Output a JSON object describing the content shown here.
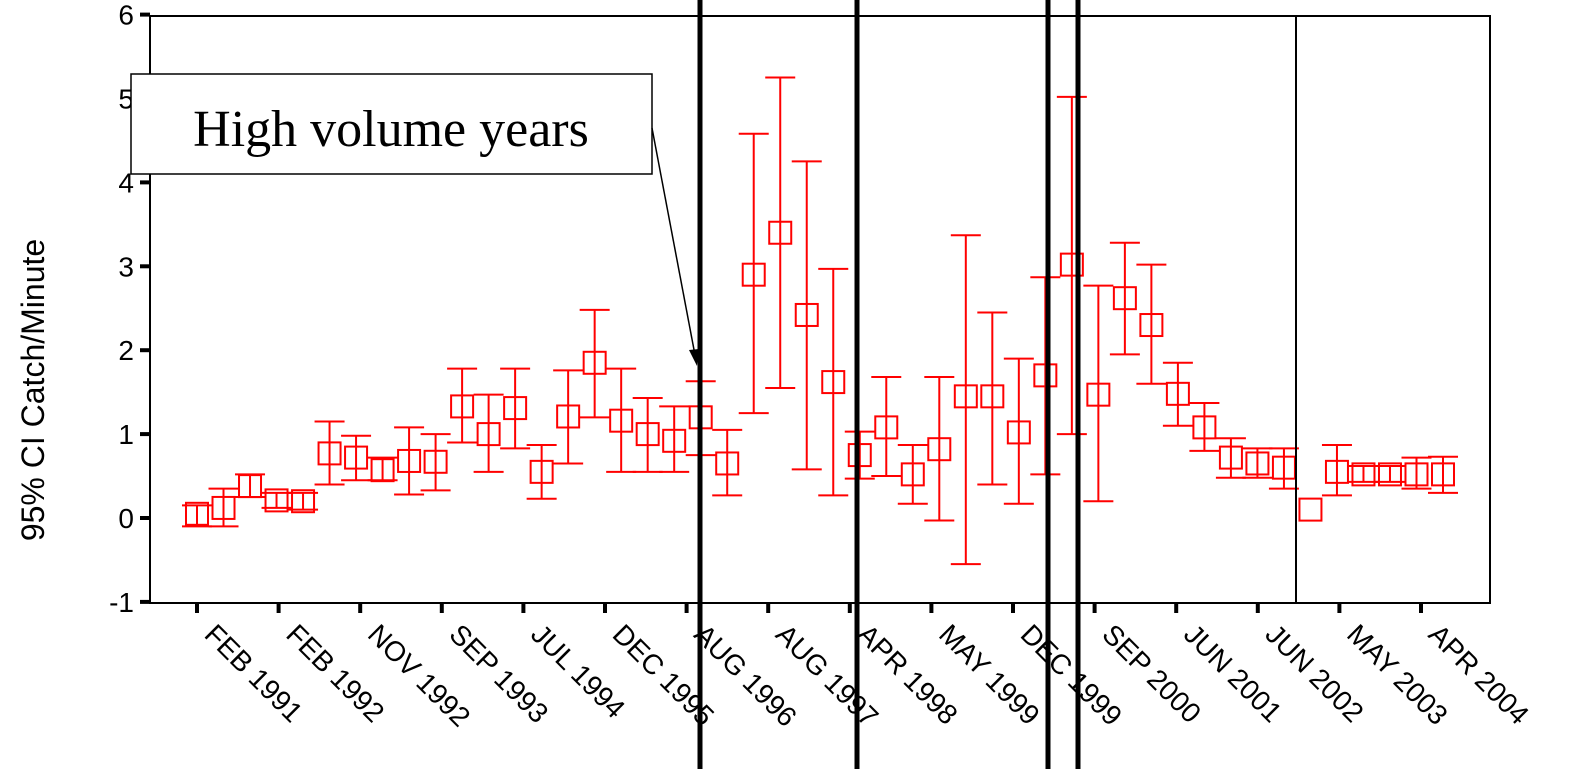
{
  "chart_data": {
    "type": "scatter",
    "title": "",
    "xlabel": "",
    "ylabel": "95% CI Catch/Minute",
    "ylim": [
      -1,
      6
    ],
    "yticks": [
      -1,
      0,
      1,
      2,
      3,
      4,
      5,
      6
    ],
    "grid": false,
    "color": "#ff0000",
    "x_tick_labels": [
      "FEB 1991",
      "FEB 1992",
      "NOV 1992",
      "SEP 1993",
      "JUL 1994",
      "DEC 1995",
      "AUG 1996",
      "AUG 1997",
      "APR 1998",
      "MAY 1999",
      "DEC 1999",
      "SEP 2000",
      "JUN 2001",
      "JUN 2002",
      "MAY 2003",
      "APR 2004"
    ],
    "annotation": {
      "text": "High volume years"
    },
    "series": [
      {
        "points": [
          {
            "mean": 0.05,
            "low": -0.1,
            "high": 0.15
          },
          {
            "mean": 0.12,
            "low": -0.1,
            "high": 0.35
          },
          {
            "mean": 0.38,
            "low": 0.25,
            "high": 0.52
          },
          {
            "mean": 0.21,
            "low": 0.12,
            "high": 0.3
          },
          {
            "mean": 0.2,
            "low": 0.1,
            "high": 0.3
          },
          {
            "mean": 0.77,
            "low": 0.4,
            "high": 1.15
          },
          {
            "mean": 0.72,
            "low": 0.45,
            "high": 0.98
          },
          {
            "mean": 0.57,
            "low": 0.45,
            "high": 0.72
          },
          {
            "mean": 0.68,
            "low": 0.28,
            "high": 1.08
          },
          {
            "mean": 0.67,
            "low": 0.33,
            "high": 1.0
          },
          {
            "mean": 1.33,
            "low": 0.9,
            "high": 1.78
          },
          {
            "mean": 1.0,
            "low": 0.55,
            "high": 1.47
          },
          {
            "mean": 1.31,
            "low": 0.83,
            "high": 1.78
          },
          {
            "mean": 0.55,
            "low": 0.23,
            "high": 0.87
          },
          {
            "mean": 1.21,
            "low": 0.65,
            "high": 1.76
          },
          {
            "mean": 1.85,
            "low": 1.2,
            "high": 2.48
          },
          {
            "mean": 1.16,
            "low": 0.55,
            "high": 1.78
          },
          {
            "mean": 1.0,
            "low": 0.55,
            "high": 1.43
          },
          {
            "mean": 0.92,
            "low": 0.55,
            "high": 1.33
          },
          {
            "mean": 1.2,
            "low": 0.75,
            "high": 1.63
          },
          {
            "mean": 0.65,
            "low": 0.27,
            "high": 1.05
          },
          {
            "mean": 2.9,
            "low": 1.25,
            "high": 4.58
          },
          {
            "mean": 3.4,
            "low": 1.55,
            "high": 5.25
          },
          {
            "mean": 2.42,
            "low": 0.58,
            "high": 4.25
          },
          {
            "mean": 1.62,
            "low": 0.27,
            "high": 2.97
          },
          {
            "mean": 0.75,
            "low": 0.47,
            "high": 1.03
          },
          {
            "mean": 1.08,
            "low": 0.5,
            "high": 1.68
          },
          {
            "mean": 0.52,
            "low": 0.17,
            "high": 0.87
          },
          {
            "mean": 0.82,
            "low": -0.03,
            "high": 1.68
          },
          {
            "mean": 1.45,
            "low": -0.55,
            "high": 3.37
          },
          {
            "mean": 1.45,
            "low": 0.4,
            "high": 2.45
          },
          {
            "mean": 1.02,
            "low": 0.17,
            "high": 1.9
          },
          {
            "mean": 1.7,
            "low": 0.52,
            "high": 2.87
          },
          {
            "mean": 3.02,
            "low": 1.0,
            "high": 5.02
          },
          {
            "mean": 1.47,
            "low": 0.2,
            "high": 2.77
          },
          {
            "mean": 2.62,
            "low": 1.95,
            "high": 3.28
          },
          {
            "mean": 2.3,
            "low": 1.6,
            "high": 3.02
          },
          {
            "mean": 1.48,
            "low": 1.1,
            "high": 1.85
          },
          {
            "mean": 1.08,
            "low": 0.8,
            "high": 1.37
          },
          {
            "mean": 0.72,
            "low": 0.48,
            "high": 0.95
          },
          {
            "mean": 0.65,
            "low": 0.48,
            "high": 0.83
          },
          {
            "mean": 0.6,
            "low": 0.35,
            "high": 0.83
          },
          {
            "mean": 0.1,
            "low": 0.1,
            "high": 0.1
          },
          {
            "mean": 0.55,
            "low": 0.27,
            "high": 0.87
          },
          {
            "mean": 0.52,
            "low": 0.43,
            "high": 0.62
          },
          {
            "mean": 0.52,
            "low": 0.43,
            "high": 0.62
          },
          {
            "mean": 0.52,
            "low": 0.35,
            "high": 0.72
          },
          {
            "mean": 0.52,
            "low": 0.3,
            "high": 0.73
          }
        ]
      }
    ]
  }
}
